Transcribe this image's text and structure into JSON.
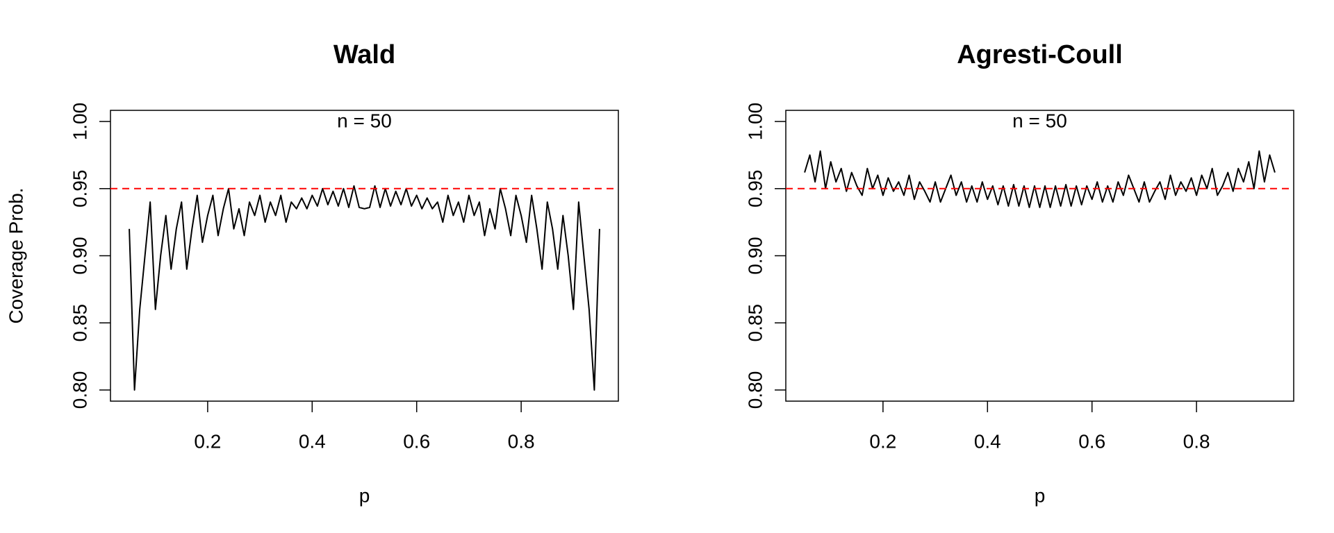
{
  "chart_data": [
    {
      "type": "line",
      "title": "Wald",
      "annotation": "n = 50",
      "x_label": "p",
      "y_label": "Coverage Prob.",
      "color": "#000000",
      "x": [
        0.05,
        0.06,
        0.07,
        0.08,
        0.09,
        0.1,
        0.11,
        0.12,
        0.13,
        0.14,
        0.15,
        0.16,
        0.17,
        0.18,
        0.19,
        0.2,
        0.21,
        0.22,
        0.23,
        0.24,
        0.25,
        0.26,
        0.27,
        0.28,
        0.29,
        0.3,
        0.31,
        0.32,
        0.33,
        0.34,
        0.35,
        0.36,
        0.37,
        0.38,
        0.39,
        0.4,
        0.41,
        0.42,
        0.43,
        0.44,
        0.45,
        0.46,
        0.47,
        0.48,
        0.49,
        0.5,
        0.51,
        0.52,
        0.53,
        0.54,
        0.55,
        0.56,
        0.57,
        0.58,
        0.59,
        0.6,
        0.61,
        0.62,
        0.63,
        0.64,
        0.65,
        0.66,
        0.67,
        0.68,
        0.69,
        0.7,
        0.71,
        0.72,
        0.73,
        0.74,
        0.75,
        0.76,
        0.77,
        0.78,
        0.79,
        0.8,
        0.81,
        0.82,
        0.83,
        0.84,
        0.85,
        0.86,
        0.87,
        0.88,
        0.89,
        0.9,
        0.91,
        0.92,
        0.93,
        0.94,
        0.95
      ],
      "values": [
        0.92,
        0.8,
        0.86,
        0.9,
        0.94,
        0.86,
        0.9,
        0.93,
        0.89,
        0.92,
        0.94,
        0.89,
        0.92,
        0.945,
        0.91,
        0.93,
        0.945,
        0.915,
        0.935,
        0.95,
        0.92,
        0.935,
        0.915,
        0.94,
        0.93,
        0.945,
        0.925,
        0.94,
        0.93,
        0.945,
        0.925,
        0.94,
        0.935,
        0.943,
        0.935,
        0.945,
        0.937,
        0.95,
        0.938,
        0.948,
        0.937,
        0.95,
        0.936,
        0.952,
        0.936,
        0.935,
        0.936,
        0.952,
        0.936,
        0.95,
        0.937,
        0.948,
        0.938,
        0.95,
        0.937,
        0.945,
        0.935,
        0.943,
        0.935,
        0.94,
        0.925,
        0.945,
        0.93,
        0.94,
        0.925,
        0.945,
        0.93,
        0.94,
        0.915,
        0.935,
        0.92,
        0.95,
        0.935,
        0.915,
        0.945,
        0.93,
        0.91,
        0.945,
        0.92,
        0.89,
        0.94,
        0.92,
        0.89,
        0.93,
        0.9,
        0.86,
        0.94,
        0.9,
        0.86,
        0.8,
        0.92
      ],
      "hline": {
        "value": 0.95,
        "color": "#ff0000"
      },
      "xlim": [
        0.014,
        0.986
      ],
      "xticks": [
        0.2,
        0.4,
        0.6,
        0.8
      ],
      "ylim": [
        0.7917,
        1.0083
      ],
      "yticks": [
        {
          "value": 0.8,
          "label": "0.80"
        },
        {
          "value": 0.85,
          "label": "0.85"
        },
        {
          "value": 0.9,
          "label": "0.90"
        },
        {
          "value": 0.95,
          "label": "0.95"
        },
        {
          "value": 1.0,
          "label": "1.00"
        }
      ]
    },
    {
      "type": "line",
      "title": "Agresti-Coull",
      "annotation": "n = 50",
      "x_label": "p",
      "color": "#000000",
      "x": [
        0.05,
        0.06,
        0.07,
        0.08,
        0.09,
        0.1,
        0.11,
        0.12,
        0.13,
        0.14,
        0.15,
        0.16,
        0.17,
        0.18,
        0.19,
        0.2,
        0.21,
        0.22,
        0.23,
        0.24,
        0.25,
        0.26,
        0.27,
        0.28,
        0.29,
        0.3,
        0.31,
        0.32,
        0.33,
        0.34,
        0.35,
        0.36,
        0.37,
        0.38,
        0.39,
        0.4,
        0.41,
        0.42,
        0.43,
        0.44,
        0.45,
        0.46,
        0.47,
        0.48,
        0.49,
        0.5,
        0.51,
        0.52,
        0.53,
        0.54,
        0.55,
        0.56,
        0.57,
        0.58,
        0.59,
        0.6,
        0.61,
        0.62,
        0.63,
        0.64,
        0.65,
        0.66,
        0.67,
        0.68,
        0.69,
        0.7,
        0.71,
        0.72,
        0.73,
        0.74,
        0.75,
        0.76,
        0.77,
        0.78,
        0.79,
        0.8,
        0.81,
        0.82,
        0.83,
        0.84,
        0.85,
        0.86,
        0.87,
        0.88,
        0.89,
        0.9,
        0.91,
        0.92,
        0.93,
        0.94,
        0.95
      ],
      "values": [
        0.962,
        0.975,
        0.955,
        0.978,
        0.95,
        0.97,
        0.955,
        0.965,
        0.948,
        0.962,
        0.952,
        0.945,
        0.965,
        0.95,
        0.96,
        0.945,
        0.958,
        0.948,
        0.955,
        0.945,
        0.96,
        0.942,
        0.955,
        0.948,
        0.94,
        0.955,
        0.94,
        0.95,
        0.96,
        0.945,
        0.955,
        0.94,
        0.952,
        0.94,
        0.955,
        0.942,
        0.952,
        0.938,
        0.952,
        0.937,
        0.953,
        0.937,
        0.952,
        0.936,
        0.952,
        0.936,
        0.952,
        0.936,
        0.952,
        0.937,
        0.953,
        0.937,
        0.952,
        0.938,
        0.952,
        0.942,
        0.955,
        0.94,
        0.952,
        0.94,
        0.955,
        0.945,
        0.96,
        0.95,
        0.94,
        0.955,
        0.94,
        0.948,
        0.955,
        0.942,
        0.96,
        0.945,
        0.955,
        0.948,
        0.958,
        0.945,
        0.96,
        0.95,
        0.965,
        0.945,
        0.952,
        0.962,
        0.948,
        0.965,
        0.955,
        0.97,
        0.95,
        0.978,
        0.955,
        0.975,
        0.962
      ],
      "hline": {
        "value": 0.95,
        "color": "#ff0000"
      },
      "xlim": [
        0.014,
        0.986
      ],
      "xticks": [
        0.2,
        0.4,
        0.6,
        0.8
      ],
      "ylim": [
        0.7917,
        1.0083
      ],
      "yticks": [
        {
          "value": 0.8,
          "label": "0.80"
        },
        {
          "value": 0.85,
          "label": "0.85"
        },
        {
          "value": 0.9,
          "label": "0.90"
        },
        {
          "value": 0.95,
          "label": "0.95"
        },
        {
          "value": 1.0,
          "label": "1.00"
        }
      ]
    }
  ]
}
